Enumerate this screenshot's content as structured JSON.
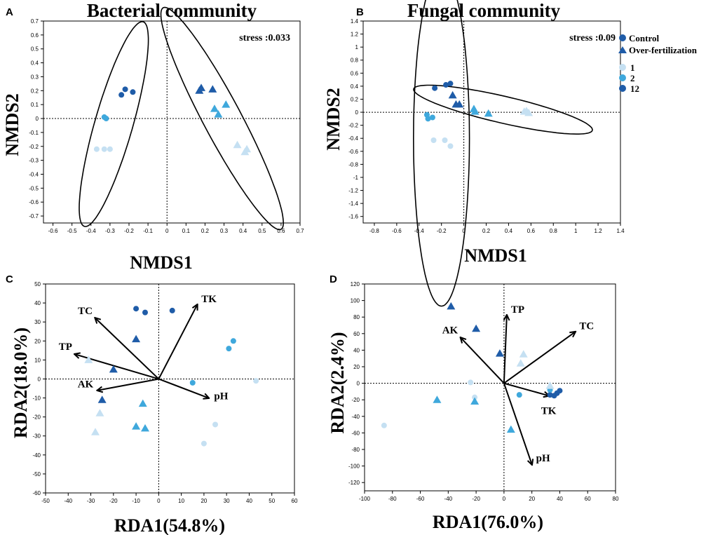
{
  "colors": {
    "group_1": "#c5e0f2",
    "group_2": "#3fa8dc",
    "group_12": "#1f5ca8",
    "axis": "#000000",
    "background": "#ffffff"
  },
  "legend": {
    "treatments": [
      {
        "label": "Control",
        "shape": "circle"
      },
      {
        "label": "Over-fertilization",
        "shape": "triangle"
      }
    ],
    "groups": [
      {
        "label": "1",
        "color_key": "group_1"
      },
      {
        "label": "2",
        "color_key": "group_2"
      },
      {
        "label": "12",
        "color_key": "group_12"
      }
    ]
  },
  "chart_data": [
    {
      "panel": "A",
      "type": "scatter",
      "title": "Bacterial community",
      "xlabel": "NMDS1",
      "ylabel": "NMDS2",
      "annotation": "stress :0.033",
      "xlim": [
        -0.65,
        0.7
      ],
      "ylim": [
        -0.75,
        0.7
      ],
      "xticks": [
        -0.6,
        -0.5,
        -0.4,
        -0.3,
        -0.2,
        -0.1,
        0,
        0.1,
        0.2,
        0.3,
        0.4,
        0.5,
        0.6,
        0.7
      ],
      "yticks": [
        0.7,
        0.6,
        0.5,
        0.4,
        0.3,
        0.2,
        0.1,
        0,
        -0.1,
        -0.2,
        -0.3,
        -0.4,
        -0.5,
        -0.6,
        -0.7
      ],
      "points": [
        {
          "x": -0.24,
          "y": 0.17,
          "shape": "circle",
          "group": "12"
        },
        {
          "x": -0.22,
          "y": 0.21,
          "shape": "circle",
          "group": "12"
        },
        {
          "x": -0.18,
          "y": 0.19,
          "shape": "circle",
          "group": "12"
        },
        {
          "x": -0.33,
          "y": 0.01,
          "shape": "circle",
          "group": "2"
        },
        {
          "x": -0.32,
          "y": 0.0,
          "shape": "circle",
          "group": "2"
        },
        {
          "x": -0.37,
          "y": -0.22,
          "shape": "circle",
          "group": "1"
        },
        {
          "x": -0.33,
          "y": -0.22,
          "shape": "circle",
          "group": "1"
        },
        {
          "x": -0.3,
          "y": -0.22,
          "shape": "circle",
          "group": "1"
        },
        {
          "x": 0.17,
          "y": 0.2,
          "shape": "triangle",
          "group": "12"
        },
        {
          "x": 0.18,
          "y": 0.22,
          "shape": "triangle",
          "group": "12"
        },
        {
          "x": 0.24,
          "y": 0.21,
          "shape": "triangle",
          "group": "12"
        },
        {
          "x": 0.25,
          "y": 0.07,
          "shape": "triangle",
          "group": "2"
        },
        {
          "x": 0.27,
          "y": 0.03,
          "shape": "triangle",
          "group": "2"
        },
        {
          "x": 0.31,
          "y": 0.1,
          "shape": "triangle",
          "group": "2"
        },
        {
          "x": 0.37,
          "y": -0.19,
          "shape": "triangle",
          "group": "1"
        },
        {
          "x": 0.41,
          "y": -0.24,
          "shape": "triangle",
          "group": "1"
        },
        {
          "x": 0.42,
          "y": -0.22,
          "shape": "triangle",
          "group": "1"
        }
      ],
      "ellipses": [
        {
          "cx": -0.28,
          "cy": -0.04,
          "rx": 0.56,
          "ry": 0.1,
          "angle_deg": 74
        },
        {
          "cx": 0.29,
          "cy": 0.0,
          "rx": 0.66,
          "ry": 0.1,
          "angle_deg": -62
        }
      ],
      "vectors": []
    },
    {
      "panel": "B",
      "type": "scatter",
      "title": "Fungal community",
      "xlabel": "NMDS1",
      "ylabel": "NMDS2",
      "annotation": "stress :0.09",
      "xlim": [
        -0.9,
        1.4
      ],
      "ylim": [
        -1.7,
        1.4
      ],
      "xticks": [
        -0.8,
        -0.6,
        -0.4,
        -0.2,
        0,
        0.2,
        0.4,
        0.6,
        0.8,
        1,
        1.2,
        1.4
      ],
      "yticks": [
        1.4,
        1.2,
        1,
        0.8,
        0.6,
        0.4,
        0.2,
        0,
        -0.2,
        -0.4,
        -0.6,
        -0.8,
        -1,
        -1.2,
        -1.4,
        -1.6
      ],
      "points": [
        {
          "x": -0.26,
          "y": 0.37,
          "shape": "circle",
          "group": "12"
        },
        {
          "x": -0.16,
          "y": 0.42,
          "shape": "circle",
          "group": "12"
        },
        {
          "x": -0.12,
          "y": 0.44,
          "shape": "circle",
          "group": "12"
        },
        {
          "x": -0.33,
          "y": -0.04,
          "shape": "circle",
          "group": "2"
        },
        {
          "x": -0.32,
          "y": -0.1,
          "shape": "circle",
          "group": "2"
        },
        {
          "x": -0.28,
          "y": -0.08,
          "shape": "circle",
          "group": "2"
        },
        {
          "x": -0.27,
          "y": -0.43,
          "shape": "circle",
          "group": "1"
        },
        {
          "x": -0.17,
          "y": -0.43,
          "shape": "circle",
          "group": "1"
        },
        {
          "x": -0.12,
          "y": -0.52,
          "shape": "circle",
          "group": "1"
        },
        {
          "x": -0.1,
          "y": 0.26,
          "shape": "triangle",
          "group": "12"
        },
        {
          "x": -0.07,
          "y": 0.12,
          "shape": "triangle",
          "group": "12"
        },
        {
          "x": -0.04,
          "y": 0.12,
          "shape": "triangle",
          "group": "12"
        },
        {
          "x": 0.09,
          "y": 0.05,
          "shape": "triangle",
          "group": "2"
        },
        {
          "x": 0.1,
          "y": 0.01,
          "shape": "triangle",
          "group": "2"
        },
        {
          "x": 0.22,
          "y": -0.02,
          "shape": "triangle",
          "group": "2"
        },
        {
          "x": 0.54,
          "y": 0.01,
          "shape": "triangle",
          "group": "1"
        },
        {
          "x": 0.56,
          "y": 0.02,
          "shape": "triangle",
          "group": "1"
        },
        {
          "x": 0.58,
          "y": -0.01,
          "shape": "triangle",
          "group": "1"
        }
      ],
      "ellipses": [
        {
          "cx": -0.2,
          "cy": -0.4,
          "rx": 0.25,
          "ry": 1.5,
          "angle_deg": 0
        },
        {
          "cx": 0.35,
          "cy": 0.04,
          "rx": 0.82,
          "ry": 0.12,
          "angle_deg": -13
        }
      ],
      "vectors": []
    },
    {
      "panel": "C",
      "type": "scatter",
      "title": "",
      "xlabel": "RDA1(54.8%)",
      "ylabel": "RDA2(18.0%)",
      "annotation": "",
      "xlim": [
        -50,
        60
      ],
      "ylim": [
        -60,
        50
      ],
      "xticks": [
        -50,
        -40,
        -30,
        -20,
        -10,
        0,
        10,
        20,
        30,
        40,
        50,
        60
      ],
      "yticks": [
        50,
        40,
        30,
        20,
        10,
        0,
        -10,
        -20,
        -30,
        -40,
        -50,
        -60
      ],
      "points": [
        {
          "x": -10,
          "y": 37,
          "shape": "circle",
          "group": "12"
        },
        {
          "x": -6,
          "y": 35,
          "shape": "circle",
          "group": "12"
        },
        {
          "x": 6,
          "y": 36,
          "shape": "circle",
          "group": "12"
        },
        {
          "x": 31,
          "y": 16,
          "shape": "circle",
          "group": "2"
        },
        {
          "x": 33,
          "y": 20,
          "shape": "circle",
          "group": "2"
        },
        {
          "x": 15,
          "y": -2,
          "shape": "circle",
          "group": "2"
        },
        {
          "x": 43,
          "y": -1,
          "shape": "circle",
          "group": "1"
        },
        {
          "x": 25,
          "y": -24,
          "shape": "circle",
          "group": "1"
        },
        {
          "x": 20,
          "y": -34,
          "shape": "circle",
          "group": "1"
        },
        {
          "x": -10,
          "y": 21,
          "shape": "triangle",
          "group": "12"
        },
        {
          "x": -20,
          "y": 5,
          "shape": "triangle",
          "group": "12"
        },
        {
          "x": -25,
          "y": -11,
          "shape": "triangle",
          "group": "12"
        },
        {
          "x": -7,
          "y": -13,
          "shape": "triangle",
          "group": "2"
        },
        {
          "x": -10,
          "y": -25,
          "shape": "triangle",
          "group": "2"
        },
        {
          "x": -6,
          "y": -26,
          "shape": "triangle",
          "group": "2"
        },
        {
          "x": -31,
          "y": 10,
          "shape": "triangle",
          "group": "1"
        },
        {
          "x": -26,
          "y": -18,
          "shape": "triangle",
          "group": "1"
        },
        {
          "x": -28,
          "y": -28,
          "shape": "triangle",
          "group": "1"
        }
      ],
      "ellipses": [],
      "vectors": [
        {
          "label": "TK",
          "x": 17,
          "y": 39,
          "label_pos": "right-above"
        },
        {
          "label": "TC",
          "x": -28,
          "y": 32,
          "label_pos": "left-above"
        },
        {
          "label": "TP",
          "x": -37,
          "y": 13,
          "label_pos": "left-above"
        },
        {
          "label": "AK",
          "x": -27,
          "y": -6,
          "label_pos": "left"
        },
        {
          "label": "pH",
          "x": 22,
          "y": -10,
          "label_pos": "right"
        }
      ]
    },
    {
      "panel": "D",
      "type": "scatter",
      "title": "",
      "xlabel": "RDA1(76.0%)",
      "ylabel": "RDA2(2.4%)",
      "annotation": "",
      "xlim": [
        -100,
        80
      ],
      "ylim": [
        -130,
        120
      ],
      "xticks": [
        -100,
        -80,
        -60,
        -40,
        -20,
        0,
        20,
        40,
        60,
        80
      ],
      "yticks": [
        120,
        100,
        80,
        60,
        40,
        20,
        0,
        -20,
        -40,
        -60,
        -80,
        -100,
        -120
      ],
      "points": [
        {
          "x": 33,
          "y": -14,
          "shape": "circle",
          "group": "12"
        },
        {
          "x": 36,
          "y": -15,
          "shape": "circle",
          "group": "12"
        },
        {
          "x": 38,
          "y": -12,
          "shape": "circle",
          "group": "12"
        },
        {
          "x": 40,
          "y": -9,
          "shape": "circle",
          "group": "12"
        },
        {
          "x": 11,
          "y": -14,
          "shape": "circle",
          "group": "2"
        },
        {
          "x": 33,
          "y": -8,
          "shape": "circle",
          "group": "2"
        },
        {
          "x": -24,
          "y": 1,
          "shape": "circle",
          "group": "1"
        },
        {
          "x": -21,
          "y": -17,
          "shape": "circle",
          "group": "1"
        },
        {
          "x": -86,
          "y": -51,
          "shape": "circle",
          "group": "1"
        },
        {
          "x": -38,
          "y": 93,
          "shape": "triangle",
          "group": "12"
        },
        {
          "x": -20,
          "y": 66,
          "shape": "triangle",
          "group": "12"
        },
        {
          "x": -3,
          "y": 36,
          "shape": "triangle",
          "group": "12"
        },
        {
          "x": -48,
          "y": -20,
          "shape": "triangle",
          "group": "2"
        },
        {
          "x": -21,
          "y": -22,
          "shape": "triangle",
          "group": "2"
        },
        {
          "x": 5,
          "y": -56,
          "shape": "triangle",
          "group": "2"
        },
        {
          "x": 14,
          "y": 35,
          "shape": "triangle",
          "group": "1"
        },
        {
          "x": 12,
          "y": 24,
          "shape": "triangle",
          "group": "1"
        },
        {
          "x": 33,
          "y": -3,
          "shape": "triangle",
          "group": "1"
        }
      ],
      "ellipses": [],
      "vectors": [
        {
          "label": "TP",
          "x": 2,
          "y": 82,
          "label_pos": "right-above"
        },
        {
          "label": "TC",
          "x": 51,
          "y": 62,
          "label_pos": "right-above"
        },
        {
          "label": "AK",
          "x": -31,
          "y": 55,
          "label_pos": "left-above"
        },
        {
          "label": "TK",
          "x": 32,
          "y": -15,
          "label_pos": "below"
        },
        {
          "label": "pH",
          "x": 20,
          "y": -98,
          "label_pos": "right-above"
        }
      ]
    }
  ]
}
